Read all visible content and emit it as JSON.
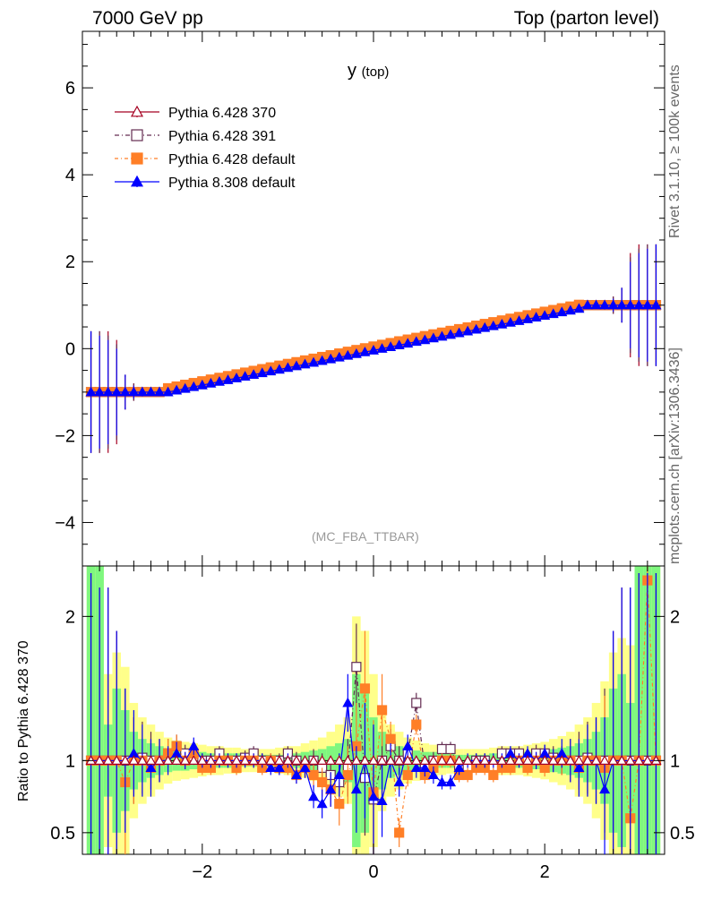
{
  "header": {
    "left": "7000 GeV pp",
    "right": "Top (parton level)",
    "rivet": "Rivet 3.1.10, ≥ 100k events",
    "mcplots": "mcplots.cern.ch [arXiv:1306.3436]"
  },
  "chart_data": [
    {
      "type": "line",
      "title": "y",
      "title_sub": "(top)",
      "annotation": "(MC_FBA_TTBAR)",
      "xlim": [
        -3.4,
        3.4
      ],
      "ylim": [
        -5.0,
        7.3
      ],
      "yticks": [
        -4,
        -2,
        0,
        2,
        4,
        6
      ],
      "ytick_labels": [
        "−4",
        "−2",
        "0",
        "2",
        "4",
        "6"
      ],
      "legend_position": "top-left",
      "x": [
        -3.3,
        -3.2,
        -3.1,
        -3.0,
        -2.9,
        -2.8,
        -2.7,
        -2.6,
        -2.5,
        -2.4,
        -2.3,
        -2.2,
        -2.1,
        -2.0,
        -1.9,
        -1.8,
        -1.7,
        -1.6,
        -1.5,
        -1.4,
        -1.3,
        -1.2,
        -1.1,
        -1.0,
        -0.9,
        -0.8,
        -0.7,
        -0.6,
        -0.5,
        -0.4,
        -0.3,
        -0.2,
        -0.1,
        0.0,
        0.1,
        0.2,
        0.3,
        0.4,
        0.5,
        0.6,
        0.7,
        0.8,
        0.9,
        1.0,
        1.1,
        1.2,
        1.3,
        1.4,
        1.5,
        1.6,
        1.7,
        1.8,
        1.9,
        2.0,
        2.1,
        2.2,
        2.3,
        2.4,
        2.5,
        2.6,
        2.7,
        2.8,
        2.9,
        3.0,
        3.1,
        3.2,
        3.3
      ],
      "series": [
        {
          "name": "Pythia 6.428 370",
          "color": "#a50021",
          "marker": "triangle-open",
          "dash": "",
          "err": [
            1.4,
            1.4,
            1.4,
            1.2,
            0.4,
            0.2,
            0.1,
            0.05,
            0.04,
            0.03,
            0.03,
            0.02,
            0.02,
            0.02,
            0.02,
            0.02,
            0.02,
            0.02,
            0.02,
            0.02,
            0.02,
            0.02,
            0.02,
            0.02,
            0.02,
            0.02,
            0.02,
            0.02,
            0.02,
            0.02,
            0.02,
            0.02,
            0.02,
            0.02,
            0.02,
            0.02,
            0.02,
            0.02,
            0.02,
            0.02,
            0.02,
            0.02,
            0.02,
            0.02,
            0.02,
            0.02,
            0.02,
            0.02,
            0.02,
            0.02,
            0.02,
            0.02,
            0.02,
            0.02,
            0.02,
            0.02,
            0.03,
            0.03,
            0.04,
            0.05,
            0.1,
            0.2,
            0.4,
            1.2,
            1.4,
            1.4,
            1.4
          ]
        },
        {
          "name": "Pythia 6.428 391",
          "color": "#632c51",
          "marker": "square-open",
          "dash": "5,3,1,3",
          "err": [
            1.4,
            1.4,
            1.3,
            1.1,
            0.4,
            0.2,
            0.1,
            0.05,
            0.04,
            0.03,
            0.03,
            0.02,
            0.02,
            0.02,
            0.02,
            0.02,
            0.02,
            0.02,
            0.02,
            0.02,
            0.02,
            0.02,
            0.02,
            0.02,
            0.02,
            0.02,
            0.02,
            0.02,
            0.02,
            0.02,
            0.02,
            0.02,
            0.02,
            0.02,
            0.02,
            0.02,
            0.02,
            0.02,
            0.02,
            0.02,
            0.02,
            0.02,
            0.02,
            0.02,
            0.02,
            0.02,
            0.02,
            0.02,
            0.02,
            0.02,
            0.02,
            0.02,
            0.02,
            0.02,
            0.02,
            0.02,
            0.03,
            0.03,
            0.04,
            0.05,
            0.1,
            0.2,
            0.4,
            1.1,
            1.3,
            1.4,
            1.4
          ]
        },
        {
          "name": "Pythia 6.428 default",
          "color": "#ff7f27",
          "marker": "square-filled",
          "dash": "4,3,1,3",
          "err": [
            1.3,
            1.3,
            1.2,
            1.0,
            0.35,
            0.15,
            0.1,
            0.05,
            0.04,
            0.03,
            0.03,
            0.02,
            0.02,
            0.02,
            0.02,
            0.02,
            0.02,
            0.02,
            0.02,
            0.02,
            0.02,
            0.02,
            0.02,
            0.02,
            0.02,
            0.02,
            0.02,
            0.02,
            0.02,
            0.02,
            0.02,
            0.02,
            0.02,
            0.02,
            0.02,
            0.02,
            0.02,
            0.02,
            0.02,
            0.02,
            0.02,
            0.02,
            0.02,
            0.02,
            0.02,
            0.02,
            0.02,
            0.02,
            0.02,
            0.02,
            0.02,
            0.02,
            0.02,
            0.02,
            0.02,
            0.02,
            0.03,
            0.03,
            0.04,
            0.05,
            0.1,
            0.15,
            0.35,
            1.0,
            1.2,
            1.3,
            1.3
          ]
        },
        {
          "name": "Pythia 8.308 default",
          "color": "#0000ff",
          "marker": "triangle-filled",
          "dash": "",
          "err": [
            1.4,
            1.3,
            1.2,
            1.0,
            0.4,
            0.15,
            0.1,
            0.05,
            0.04,
            0.03,
            0.03,
            0.02,
            0.02,
            0.02,
            0.02,
            0.02,
            0.02,
            0.02,
            0.02,
            0.02,
            0.02,
            0.02,
            0.02,
            0.02,
            0.02,
            0.02,
            0.02,
            0.02,
            0.02,
            0.02,
            0.02,
            0.02,
            0.02,
            0.02,
            0.02,
            0.02,
            0.02,
            0.02,
            0.02,
            0.02,
            0.02,
            0.02,
            0.02,
            0.02,
            0.02,
            0.02,
            0.02,
            0.02,
            0.02,
            0.02,
            0.02,
            0.02,
            0.02,
            0.02,
            0.02,
            0.02,
            0.03,
            0.03,
            0.04,
            0.05,
            0.1,
            0.15,
            0.4,
            1.0,
            1.2,
            1.3,
            1.4
          ]
        }
      ]
    },
    {
      "type": "line",
      "ylabel": "Ratio to Pythia 6.428 370",
      "xlim": [
        -3.4,
        3.4
      ],
      "ylim": [
        0.35,
        2.35
      ],
      "xticks": [
        -2,
        0,
        2
      ],
      "xtick_labels": [
        "−2",
        "0",
        "2"
      ],
      "yticks": [
        0.5,
        1,
        2
      ],
      "ytick_labels": [
        "0.5",
        "1",
        "2"
      ],
      "band_colors": {
        "inner": "#7ff77f",
        "outer": "#ffff8a"
      },
      "band_inner": [
        1.4,
        1.4,
        0.25,
        0.5,
        0.35,
        0.2,
        0.15,
        0.12,
        0.1,
        0.08,
        0.07,
        0.07,
        0.06,
        0.06,
        0.05,
        0.05,
        0.05,
        0.05,
        0.04,
        0.04,
        0.04,
        0.04,
        0.04,
        0.05,
        0.05,
        0.06,
        0.07,
        0.08,
        0.1,
        0.12,
        0.15,
        0.6,
        0.5,
        0.3,
        0.2,
        0.12,
        0.1,
        0.08,
        0.07,
        0.06,
        0.06,
        0.05,
        0.05,
        0.04,
        0.04,
        0.04,
        0.04,
        0.05,
        0.05,
        0.05,
        0.05,
        0.06,
        0.06,
        0.07,
        0.08,
        0.09,
        0.1,
        0.12,
        0.15,
        0.2,
        0.3,
        0.5,
        0.6,
        0.4,
        1.4,
        1.4,
        1.4
      ],
      "band_outer": [
        1.4,
        1.4,
        0.6,
        0.75,
        0.65,
        0.4,
        0.3,
        0.25,
        0.2,
        0.16,
        0.14,
        0.13,
        0.12,
        0.11,
        0.1,
        0.1,
        0.09,
        0.09,
        0.08,
        0.08,
        0.08,
        0.08,
        0.09,
        0.1,
        0.1,
        0.12,
        0.14,
        0.16,
        0.2,
        0.25,
        0.3,
        1.0,
        0.9,
        0.6,
        0.35,
        0.25,
        0.2,
        0.16,
        0.14,
        0.12,
        0.11,
        0.1,
        0.09,
        0.08,
        0.08,
        0.08,
        0.08,
        0.09,
        0.1,
        0.1,
        0.1,
        0.11,
        0.12,
        0.13,
        0.15,
        0.17,
        0.2,
        0.25,
        0.3,
        0.4,
        0.55,
        0.75,
        0.85,
        0.8,
        1.4,
        1.4,
        1.4
      ],
      "series": [
        {
          "name": "Pythia 6.428 391",
          "values": [
            1.0,
            1.0,
            1.0,
            1.0,
            1.0,
            1.0,
            1.02,
            1.0,
            1.0,
            1.05,
            1.1,
            1.05,
            1.03,
            1.0,
            1.0,
            1.05,
            1.0,
            1.0,
            1.02,
            1.05,
            1.0,
            1.0,
            1.0,
            1.05,
            1.0,
            0.95,
            1.0,
            0.95,
            0.9,
            0.85,
            0.95,
            1.65,
            0.88,
            0.73,
            1.0,
            1.1,
            1.0,
            1.05,
            1.4,
            0.95,
            1.0,
            1.08,
            1.08,
            0.95,
            0.95,
            1.0,
            1.0,
            0.95,
            1.05,
            1.05,
            1.05,
            1.0,
            1.05,
            1.05,
            1.02,
            1.0,
            1.0,
            1.0,
            1.02,
            1.0,
            1.0,
            1.0,
            1.0,
            1.0,
            1.0,
            1.0,
            1.0
          ],
          "err": [
            1.3,
            1.2,
            1.2,
            0.9,
            0.5,
            0.3,
            0.25,
            0.2,
            0.15,
            0.1,
            0.08,
            0.06,
            0.06,
            0.05,
            0.05,
            0.05,
            0.05,
            0.05,
            0.05,
            0.05,
            0.05,
            0.05,
            0.05,
            0.05,
            0.06,
            0.07,
            0.08,
            0.1,
            0.12,
            0.15,
            0.2,
            0.3,
            0.4,
            0.5,
            0.25,
            0.12,
            0.1,
            0.08,
            0.07,
            0.06,
            0.06,
            0.05,
            0.05,
            0.05,
            0.05,
            0.05,
            0.05,
            0.05,
            0.05,
            0.05,
            0.05,
            0.05,
            0.06,
            0.06,
            0.08,
            0.1,
            0.15,
            0.2,
            0.25,
            0.3,
            0.5,
            0.9,
            1.2,
            1.2,
            1.3,
            1.3,
            1.3
          ]
        },
        {
          "name": "Pythia 6.428 default",
          "values": [
            1.0,
            1.0,
            1.0,
            1.0,
            0.85,
            1.0,
            1.0,
            0.95,
            1.0,
            1.05,
            1.1,
            1.0,
            1.05,
            0.95,
            0.95,
            1.0,
            1.0,
            0.95,
            1.0,
            1.0,
            0.95,
            1.0,
            0.95,
            0.95,
            0.9,
            0.95,
            0.9,
            0.85,
            0.8,
            0.7,
            0.9,
            1.1,
            1.5,
            0.78,
            1.35,
            1.15,
            0.5,
            0.9,
            1.25,
            0.9,
            0.95,
            1.0,
            1.0,
            0.9,
            0.9,
            0.95,
            0.95,
            0.9,
            0.95,
            0.95,
            1.0,
            0.95,
            1.0,
            0.95,
            1.0,
            1.0,
            1.0,
            0.95,
            1.0,
            1.0,
            0.95,
            1.0,
            1.0,
            0.6,
            1.0,
            2.25,
            1.0
          ],
          "err": [
            1.3,
            1.2,
            1.2,
            0.9,
            0.5,
            0.3,
            0.25,
            0.2,
            0.15,
            0.1,
            0.08,
            0.06,
            0.06,
            0.05,
            0.05,
            0.05,
            0.05,
            0.05,
            0.05,
            0.05,
            0.05,
            0.05,
            0.05,
            0.05,
            0.06,
            0.07,
            0.08,
            0.1,
            0.12,
            0.15,
            0.2,
            0.3,
            0.4,
            0.5,
            0.25,
            0.12,
            0.1,
            0.08,
            0.07,
            0.06,
            0.06,
            0.05,
            0.05,
            0.05,
            0.05,
            0.05,
            0.05,
            0.05,
            0.05,
            0.05,
            0.05,
            0.05,
            0.06,
            0.06,
            0.08,
            0.1,
            0.15,
            0.2,
            0.25,
            0.3,
            0.5,
            0.9,
            1.2,
            1.2,
            1.3,
            1.3,
            1.3
          ]
        },
        {
          "name": "Pythia 8.308 default",
          "values": [
            1.0,
            1.0,
            1.0,
            1.0,
            1.0,
            1.05,
            1.0,
            0.95,
            1.0,
            1.0,
            1.05,
            1.0,
            1.1,
            1.0,
            1.0,
            1.0,
            1.0,
            1.0,
            1.0,
            1.0,
            1.0,
            0.95,
            0.95,
            1.0,
            0.9,
            0.95,
            0.75,
            0.7,
            0.8,
            0.9,
            1.4,
            0.8,
            1.0,
            0.75,
            0.72,
            1.0,
            0.85,
            1.1,
            0.95,
            0.95,
            0.9,
            0.85,
            0.85,
            0.95,
            1.0,
            1.0,
            1.0,
            1.0,
            1.0,
            1.05,
            1.0,
            1.05,
            1.0,
            1.05,
            1.0,
            1.05,
            1.0,
            0.95,
            1.0,
            1.0,
            0.8,
            1.0,
            1.0,
            1.0,
            1.0,
            1.0,
            1.0
          ],
          "err": [
            1.3,
            1.2,
            1.2,
            0.9,
            0.5,
            0.3,
            0.25,
            0.2,
            0.15,
            0.1,
            0.08,
            0.06,
            0.06,
            0.05,
            0.05,
            0.05,
            0.05,
            0.05,
            0.05,
            0.05,
            0.05,
            0.05,
            0.05,
            0.05,
            0.06,
            0.07,
            0.08,
            0.1,
            0.12,
            0.15,
            0.2,
            0.3,
            0.4,
            0.5,
            0.25,
            0.12,
            0.1,
            0.08,
            0.07,
            0.06,
            0.06,
            0.05,
            0.05,
            0.05,
            0.05,
            0.05,
            0.05,
            0.05,
            0.05,
            0.05,
            0.05,
            0.05,
            0.06,
            0.06,
            0.08,
            0.1,
            0.15,
            0.2,
            0.25,
            0.3,
            0.5,
            0.9,
            1.2,
            1.2,
            1.3,
            1.3,
            1.3
          ]
        }
      ]
    }
  ]
}
